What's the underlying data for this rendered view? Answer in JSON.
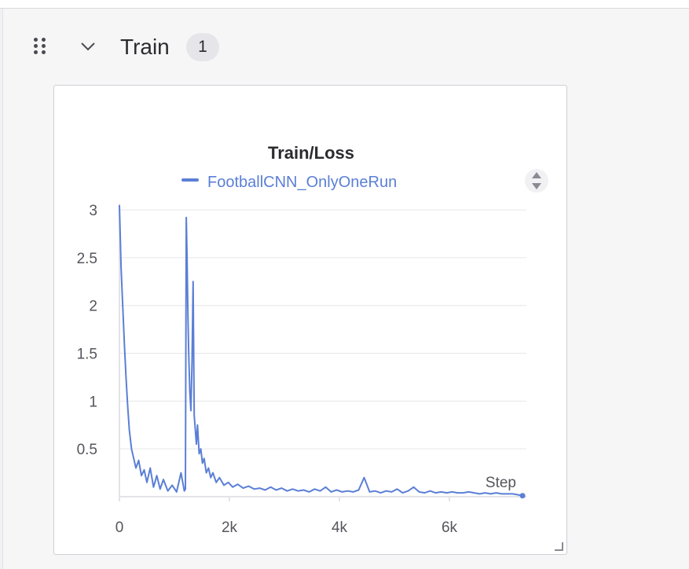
{
  "section": {
    "title": "Train",
    "count": "1"
  },
  "icons": {
    "drag": "drag-handle-icon",
    "collapse": "chevron-down-icon",
    "legend_scroll": "sort-arrows-icon",
    "resize": "resize-corner-icon"
  },
  "colors": {
    "series": "#5b7fd6",
    "grid": "#e6e6ea",
    "axis_text": "#55555c"
  },
  "chart_data": {
    "type": "line",
    "title": "Train/Loss",
    "xlabel": "Step",
    "ylabel": "",
    "xlim": [
      0,
      7400
    ],
    "ylim": [
      0,
      3.05
    ],
    "xticks": [
      0,
      2000,
      4000,
      6000
    ],
    "xtick_labels": [
      "0",
      "2k",
      "4k",
      "6k"
    ],
    "yticks": [
      0.5,
      1,
      1.5,
      2,
      2.5,
      3
    ],
    "ytick_labels": [
      "0.5",
      "1",
      "1.5",
      "2",
      "2.5",
      "3"
    ],
    "grid": true,
    "legend_position": "top",
    "series": [
      {
        "name": "FootballCNN_OnlyOneRun",
        "x": [
          0,
          30,
          60,
          90,
          120,
          150,
          180,
          220,
          260,
          300,
          350,
          400,
          450,
          500,
          560,
          620,
          680,
          740,
          800,
          880,
          960,
          1040,
          1120,
          1180,
          1200,
          1215,
          1230,
          1245,
          1260,
          1280,
          1300,
          1320,
          1340,
          1360,
          1380,
          1400,
          1420,
          1450,
          1480,
          1510,
          1540,
          1580,
          1620,
          1660,
          1700,
          1760,
          1820,
          1900,
          1980,
          2060,
          2150,
          2250,
          2350,
          2450,
          2550,
          2650,
          2750,
          2850,
          2950,
          3050,
          3150,
          3250,
          3350,
          3450,
          3550,
          3650,
          3750,
          3850,
          3950,
          4050,
          4150,
          4250,
          4350,
          4450,
          4550,
          4650,
          4750,
          4850,
          4950,
          5050,
          5150,
          5250,
          5350,
          5450,
          5550,
          5650,
          5750,
          5850,
          5950,
          6050,
          6150,
          6250,
          6350,
          6450,
          6550,
          6650,
          6750,
          6850,
          6950,
          7050,
          7150,
          7250,
          7330
        ],
        "values": [
          3.05,
          2.4,
          2.0,
          1.6,
          1.25,
          0.95,
          0.7,
          0.5,
          0.4,
          0.3,
          0.38,
          0.22,
          0.28,
          0.15,
          0.3,
          0.1,
          0.22,
          0.08,
          0.18,
          0.06,
          0.12,
          0.05,
          0.25,
          0.06,
          0.08,
          2.92,
          2.5,
          1.9,
          1.5,
          1.1,
          0.9,
          1.4,
          2.25,
          0.85,
          0.7,
          0.55,
          0.75,
          0.45,
          0.5,
          0.35,
          0.4,
          0.25,
          0.3,
          0.2,
          0.25,
          0.15,
          0.2,
          0.12,
          0.15,
          0.1,
          0.13,
          0.09,
          0.11,
          0.08,
          0.09,
          0.07,
          0.1,
          0.07,
          0.09,
          0.06,
          0.08,
          0.06,
          0.07,
          0.05,
          0.08,
          0.06,
          0.1,
          0.05,
          0.07,
          0.05,
          0.06,
          0.05,
          0.07,
          0.2,
          0.05,
          0.06,
          0.04,
          0.06,
          0.05,
          0.08,
          0.04,
          0.06,
          0.1,
          0.05,
          0.04,
          0.06,
          0.04,
          0.05,
          0.04,
          0.05,
          0.04,
          0.04,
          0.05,
          0.04,
          0.03,
          0.04,
          0.03,
          0.04,
          0.03,
          0.03,
          0.03,
          0.02,
          0.01
        ]
      }
    ]
  }
}
